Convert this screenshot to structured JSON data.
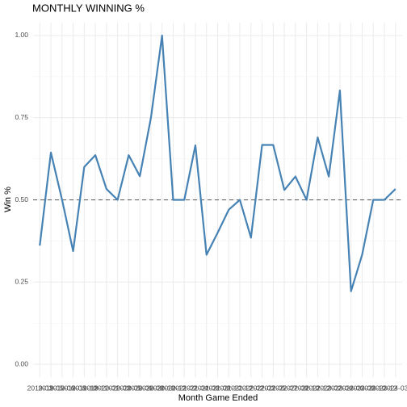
{
  "chart_data": {
    "type": "line",
    "title": "MONTHLY WINNING %",
    "xlabel": "Month Game Ended",
    "ylabel": "Win %",
    "categories": [
      "2019-03",
      "2019-05",
      "2019-06",
      "2019-08",
      "2019-10",
      "2019-11",
      "2020-01",
      "2020-03",
      "2020-05",
      "2020-06",
      "2020-08",
      "2020-10",
      "2020-12",
      "2021-02",
      "2021-04",
      "2021-06",
      "2021-08",
      "2021-10",
      "2021-12",
      "2022-02",
      "2022-03",
      "2022-05",
      "2022-07",
      "2022-08",
      "2022-10",
      "2022-12",
      "2023-02",
      "2023-04",
      "2023-06",
      "2023-08",
      "2023-10",
      "2023-12",
      "2024-03"
    ],
    "series": [
      {
        "name": "Win %",
        "color": "#4682b4",
        "values": [
          0.361,
          0.644,
          0.501,
          0.344,
          0.6,
          0.636,
          0.533,
          0.5,
          0.636,
          0.572,
          0.75,
          1.0,
          0.5,
          0.5,
          0.666,
          0.333,
          0.4,
          0.47,
          0.5,
          0.385,
          0.667,
          0.667,
          0.53,
          0.571,
          0.5,
          0.69,
          0.571,
          0.833,
          0.222,
          0.333,
          0.5,
          0.5,
          0.533
        ]
      }
    ],
    "reference_line": 0.5,
    "ylim": [
      -0.04,
      1.04
    ],
    "yticks": [
      {
        "value": 0,
        "label": "0.00"
      },
      {
        "value": 0.25,
        "label": "0.25"
      },
      {
        "value": 0.5,
        "label": "0.50"
      },
      {
        "value": 0.75,
        "label": "0.75"
      },
      {
        "value": 1,
        "label": "1.00"
      }
    ],
    "grid": true
  }
}
